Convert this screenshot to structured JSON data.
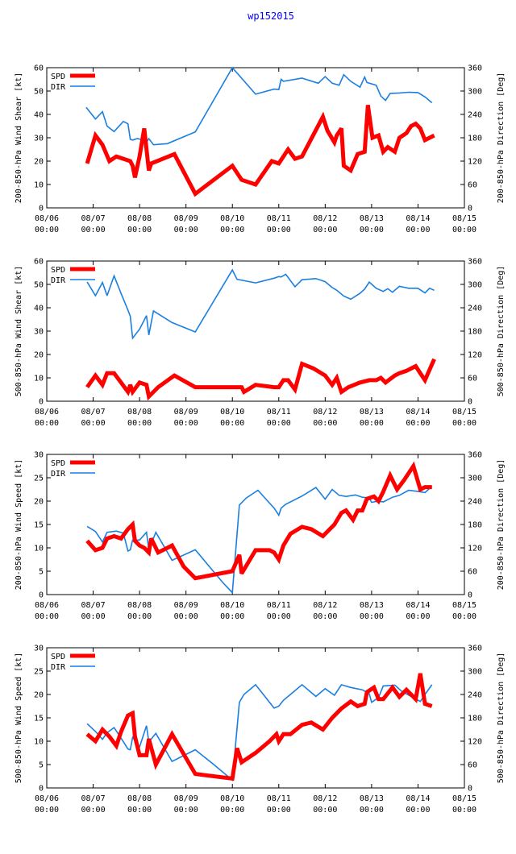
{
  "figure_title": "wp152015",
  "colors": {
    "spd": "#ff0000",
    "dir": "#1a7fe0",
    "title": "#0000ff"
  },
  "chart_data": [
    {
      "type": "line",
      "xlabel": "",
      "ylabel": "200-850-hPa Wind Shear [kt]",
      "ylabel_right": "200-850-hPa Direction [Deg]",
      "xlim": [
        0,
        9
      ],
      "ylim": [
        0,
        60
      ],
      "yticks": [
        0,
        10,
        20,
        30,
        40,
        50,
        60
      ],
      "ylim_right": [
        0,
        360
      ],
      "yticks_right": [
        0,
        60,
        120,
        180,
        240,
        300,
        360
      ],
      "xticks": [
        {
          "date": "08/06",
          "time": "00:00"
        },
        {
          "date": "08/07",
          "time": "00:00"
        },
        {
          "date": "08/08",
          "time": "00:00"
        },
        {
          "date": "08/09",
          "time": "00:00"
        },
        {
          "date": "08/10",
          "time": "00:00"
        },
        {
          "date": "08/11",
          "time": "00:00"
        },
        {
          "date": "08/12",
          "time": "00:00"
        },
        {
          "date": "08/13",
          "time": "00:00"
        },
        {
          "date": "08/14",
          "time": "00:00"
        },
        {
          "date": "08/15",
          "time": "00:00"
        }
      ],
      "legend": [
        "SPD",
        "DIR"
      ],
      "series": [
        {
          "name": "SPD",
          "axis": "left",
          "x": [
            0.87,
            1.05,
            1.2,
            1.35,
            1.5,
            1.65,
            1.8,
            1.85,
            1.9,
            2.0,
            2.1,
            2.2,
            2.25,
            2.75,
            3.2,
            4.0,
            4.2,
            4.5,
            4.85,
            5.0,
            5.2,
            5.35,
            5.5,
            5.95,
            6.05,
            6.2,
            6.25,
            6.35,
            6.4,
            6.55,
            6.7,
            6.85,
            6.92,
            7.02,
            7.15,
            7.25,
            7.35,
            7.5,
            7.6,
            7.75,
            7.85,
            7.95,
            8.05,
            8.15,
            8.25,
            8.35
          ],
          "y": [
            19,
            31,
            27,
            20,
            22,
            21,
            20,
            18,
            13,
            22,
            34,
            16,
            19,
            23,
            6,
            18,
            12,
            10,
            20,
            19,
            25,
            21,
            22,
            39,
            33,
            28,
            31,
            34,
            18,
            16,
            23,
            24,
            44,
            30,
            31,
            24,
            26,
            24,
            30,
            32,
            35,
            36,
            34,
            29,
            30,
            31
          ]
        },
        {
          "name": "DIR",
          "axis": "right",
          "x": [
            0.85,
            1.05,
            1.2,
            1.3,
            1.45,
            1.65,
            1.75,
            1.8,
            1.85,
            1.95,
            2.05,
            2.15,
            2.2,
            2.3,
            2.6,
            3.2,
            4.0,
            4.5,
            4.9,
            5.0,
            5.05,
            5.1,
            5.5,
            5.85,
            6.0,
            6.15,
            6.3,
            6.4,
            6.55,
            6.75,
            6.85,
            6.9,
            7.1,
            7.2,
            7.3,
            7.4,
            7.6,
            7.8,
            8.0,
            8.15,
            8.3
          ],
          "y": [
            258,
            228,
            247,
            210,
            196,
            222,
            216,
            176,
            174,
            178,
            175,
            168,
            178,
            162,
            165,
            195,
            360,
            292,
            305,
            304,
            330,
            325,
            333,
            320,
            337,
            320,
            315,
            342,
            325,
            310,
            336,
            322,
            315,
            287,
            276,
            294,
            295,
            297,
            296,
            285,
            270
          ]
        }
      ]
    },
    {
      "type": "line",
      "xlabel": "",
      "ylabel": "500-850-hPa Wind Shear [kt]",
      "ylabel_right": "500-850-hPa Direction [Deg]",
      "xlim": [
        0,
        9
      ],
      "ylim": [
        0,
        60
      ],
      "yticks": [
        0,
        10,
        20,
        30,
        40,
        50,
        60
      ],
      "ylim_right": [
        0,
        360
      ],
      "yticks_right": [
        0,
        60,
        120,
        180,
        240,
        300,
        360
      ],
      "xticks": [
        {
          "date": "08/06",
          "time": "00:00"
        },
        {
          "date": "08/07",
          "time": "00:00"
        },
        {
          "date": "08/08",
          "time": "00:00"
        },
        {
          "date": "08/09",
          "time": "00:00"
        },
        {
          "date": "08/10",
          "time": "00:00"
        },
        {
          "date": "08/11",
          "time": "00:00"
        },
        {
          "date": "08/12",
          "time": "00:00"
        },
        {
          "date": "08/13",
          "time": "00:00"
        },
        {
          "date": "08/14",
          "time": "00:00"
        },
        {
          "date": "08/15",
          "time": "00:00"
        }
      ],
      "legend": [
        "SPD",
        "DIR"
      ],
      "series": [
        {
          "name": "SPD",
          "axis": "left",
          "x": [
            0.87,
            1.05,
            1.2,
            1.3,
            1.45,
            1.6,
            1.75,
            1.8,
            1.85,
            2.0,
            2.15,
            2.2,
            2.4,
            2.75,
            3.2,
            4.2,
            4.25,
            4.5,
            4.9,
            5.0,
            5.1,
            5.2,
            5.35,
            5.5,
            5.75,
            6.0,
            6.15,
            6.25,
            6.35,
            6.5,
            6.75,
            6.95,
            7.1,
            7.2,
            7.3,
            7.5,
            7.6,
            7.75,
            7.95,
            8.05,
            8.15,
            8.35
          ],
          "y": [
            6,
            11,
            7,
            12,
            12,
            8,
            4,
            7,
            4,
            8,
            7,
            2,
            6,
            11,
            6,
            6,
            4,
            7,
            6,
            6,
            9,
            9,
            5,
            16,
            14,
            11,
            7,
            10,
            4,
            6,
            8,
            9,
            9,
            10,
            8,
            11,
            12,
            13,
            15,
            12,
            9,
            18
          ]
        },
        {
          "name": "DIR",
          "axis": "right",
          "x": [
            0.87,
            1.05,
            1.2,
            1.3,
            1.45,
            1.6,
            1.75,
            1.8,
            1.85,
            2.0,
            2.15,
            2.2,
            2.3,
            2.7,
            3.2,
            4.0,
            4.1,
            4.5,
            4.9,
            5.0,
            5.05,
            5.15,
            5.35,
            5.5,
            5.8,
            6.0,
            6.15,
            6.25,
            6.4,
            6.55,
            6.75,
            6.85,
            6.95,
            7.1,
            7.25,
            7.35,
            7.45,
            7.6,
            7.8,
            8.0,
            8.15,
            8.25,
            8.35
          ],
          "y": [
            306,
            271,
            305,
            271,
            322,
            277,
            234,
            218,
            162,
            185,
            220,
            170,
            232,
            202,
            178,
            337,
            313,
            304,
            316,
            320,
            319,
            326,
            294,
            312,
            315,
            307,
            292,
            285,
            270,
            262,
            277,
            288,
            306,
            290,
            282,
            289,
            280,
            295,
            290,
            290,
            278,
            290,
            285
          ]
        }
      ]
    },
    {
      "type": "line",
      "xlabel": "",
      "ylabel": "200-850-hPa Wind Speed [kt]",
      "ylabel_right": "200-850-hPa Direction [Deg]",
      "xlim": [
        0,
        9
      ],
      "ylim": [
        0,
        30
      ],
      "yticks": [
        0,
        5,
        10,
        15,
        20,
        25,
        30
      ],
      "ylim_right": [
        0,
        360
      ],
      "yticks_right": [
        0,
        60,
        120,
        180,
        240,
        300,
        360
      ],
      "xticks": [
        {
          "date": "08/06",
          "time": "00:00"
        },
        {
          "date": "08/07",
          "time": "00:00"
        },
        {
          "date": "08/08",
          "time": "00:00"
        },
        {
          "date": "08/09",
          "time": "00:00"
        },
        {
          "date": "08/10",
          "time": "00:00"
        },
        {
          "date": "08/11",
          "time": "00:00"
        },
        {
          "date": "08/12",
          "time": "00:00"
        },
        {
          "date": "08/13",
          "time": "00:00"
        },
        {
          "date": "08/14",
          "time": "00:00"
        },
        {
          "date": "08/15",
          "time": "00:00"
        }
      ],
      "legend": [
        "SPD",
        "DIR"
      ],
      "series": [
        {
          "name": "SPD",
          "axis": "left",
          "x": [
            0.87,
            1.05,
            1.2,
            1.3,
            1.45,
            1.6,
            1.75,
            1.85,
            1.9,
            2.0,
            2.1,
            2.2,
            2.25,
            2.4,
            2.7,
            2.95,
            3.2,
            4.0,
            4.15,
            4.2,
            4.5,
            4.8,
            4.9,
            5.0,
            5.1,
            5.25,
            5.5,
            5.7,
            5.95,
            6.2,
            6.35,
            6.45,
            6.6,
            6.7,
            6.8,
            6.9,
            7.05,
            7.15,
            7.25,
            7.4,
            7.55,
            7.7,
            7.9,
            8.05,
            8.15,
            8.3
          ],
          "y": [
            11.5,
            9.5,
            10,
            12,
            12.5,
            12,
            14,
            15,
            11.5,
            10.5,
            10,
            9,
            12,
            9,
            10.5,
            6,
            3.5,
            5,
            8.5,
            4.5,
            9.5,
            9.5,
            9,
            7.5,
            10.5,
            13,
            14.5,
            14,
            12.5,
            15,
            17.5,
            18,
            16,
            18,
            18,
            20.5,
            21,
            20,
            22,
            25.5,
            22.5,
            24.5,
            27.5,
            22.5,
            23,
            23
          ]
        },
        {
          "name": "DIR",
          "axis": "right",
          "x": [
            0.87,
            1.05,
            1.2,
            1.3,
            1.5,
            1.65,
            1.75,
            1.8,
            1.85,
            2.0,
            2.15,
            2.2,
            2.35,
            2.7,
            3.2,
            3.8,
            4.0,
            4.15,
            4.3,
            4.55,
            4.9,
            5.0,
            5.05,
            5.15,
            5.5,
            5.8,
            6.0,
            6.15,
            6.3,
            6.45,
            6.65,
            6.8,
            6.95,
            7.0,
            7.15,
            7.25,
            7.45,
            7.6,
            7.8,
            8.0,
            8.15,
            8.3
          ],
          "y": [
            175,
            162,
            135,
            160,
            163,
            158,
            112,
            115,
            140,
            140,
            160,
            115,
            160,
            88,
            115,
            30,
            5,
            230,
            248,
            268,
            222,
            204,
            222,
            232,
            253,
            275,
            245,
            270,
            255,
            252,
            256,
            250,
            248,
            237,
            240,
            238,
            250,
            255,
            268,
            265,
            262,
            278
          ]
        }
      ]
    },
    {
      "type": "line",
      "xlabel": "",
      "ylabel": "500-850-hPa Wind Speed [kt]",
      "ylabel_right": "500-850-hPa Direction [Deg]",
      "xlim": [
        0,
        9
      ],
      "ylim": [
        0,
        30
      ],
      "yticks": [
        0,
        5,
        10,
        15,
        20,
        25,
        30
      ],
      "ylim_right": [
        0,
        360
      ],
      "yticks_right": [
        0,
        60,
        120,
        180,
        240,
        300,
        360
      ],
      "xticks": [
        {
          "date": "08/06",
          "time": "00:00"
        },
        {
          "date": "08/07",
          "time": "00:00"
        },
        {
          "date": "08/08",
          "time": "00:00"
        },
        {
          "date": "08/09",
          "time": "00:00"
        },
        {
          "date": "08/10",
          "time": "00:00"
        },
        {
          "date": "08/11",
          "time": "00:00"
        },
        {
          "date": "08/12",
          "time": "00:00"
        },
        {
          "date": "08/13",
          "time": "00:00"
        },
        {
          "date": "08/14",
          "time": "00:00"
        },
        {
          "date": "08/15",
          "time": "00:00"
        }
      ],
      "legend": [
        "SPD",
        "DIR"
      ],
      "series": [
        {
          "name": "SPD",
          "axis": "left",
          "x": [
            0.87,
            1.05,
            1.2,
            1.35,
            1.5,
            1.6,
            1.75,
            1.85,
            1.9,
            2.0,
            2.15,
            2.2,
            2.35,
            2.7,
            3.2,
            4.0,
            4.1,
            4.2,
            4.5,
            4.8,
            4.95,
            5.0,
            5.1,
            5.25,
            5.5,
            5.7,
            5.95,
            6.15,
            6.35,
            6.55,
            6.7,
            6.85,
            6.9,
            7.05,
            7.15,
            7.25,
            7.45,
            7.6,
            7.75,
            7.95,
            8.05,
            8.15,
            8.3
          ],
          "y": [
            11.5,
            10,
            12.5,
            11,
            9,
            12,
            15.5,
            16,
            11,
            7,
            7,
            10.5,
            5,
            11.5,
            3,
            2,
            8.5,
            5.5,
            7.5,
            10,
            11.5,
            10,
            11.5,
            11.5,
            13.5,
            14,
            12.5,
            15,
            17,
            18.5,
            17.5,
            18,
            20.5,
            21.5,
            19,
            19,
            21.5,
            19.5,
            21,
            19,
            24.5,
            18,
            17.5
          ]
        },
        {
          "name": "DIR",
          "axis": "right",
          "x": [
            0.87,
            1.05,
            1.2,
            1.3,
            1.45,
            1.6,
            1.75,
            1.8,
            1.85,
            2.0,
            2.15,
            2.2,
            2.35,
            2.7,
            3.2,
            3.6,
            4.0,
            4.15,
            4.25,
            4.5,
            4.9,
            5.0,
            5.1,
            5.25,
            5.5,
            5.8,
            6.0,
            6.2,
            6.35,
            6.55,
            6.8,
            6.95,
            7.0,
            7.15,
            7.25,
            7.5,
            7.65,
            7.85,
            8.05,
            8.15,
            8.3
          ],
          "y": [
            165,
            145,
            125,
            142,
            155,
            128,
            100,
            98,
            130,
            105,
            160,
            118,
            140,
            68,
            98,
            60,
            20,
            220,
            240,
            265,
            205,
            210,
            225,
            240,
            265,
            235,
            255,
            238,
            265,
            258,
            252,
            242,
            220,
            232,
            262,
            264,
            248,
            235,
            222,
            240,
            265
          ]
        }
      ]
    }
  ]
}
